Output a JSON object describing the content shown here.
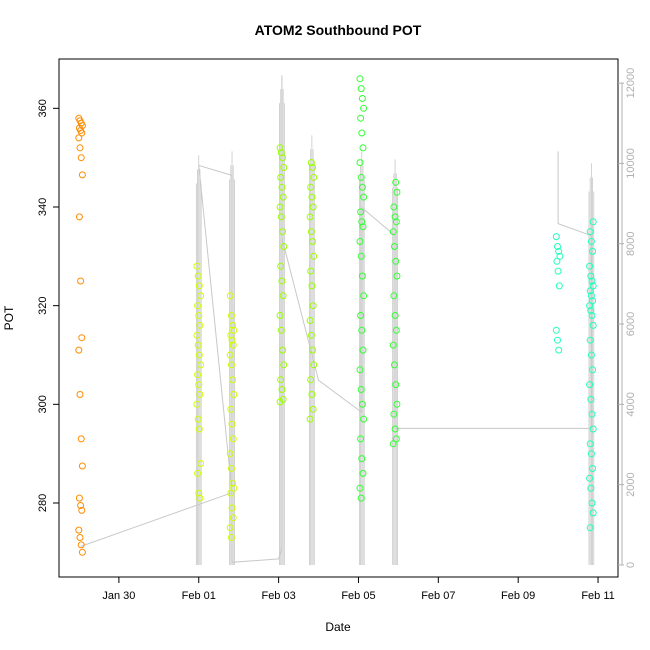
{
  "chart_data": {
    "type": "scatter",
    "title": "ATOM2 Southbound POT",
    "xlabel": "Date",
    "ylabel": "POT",
    "xlim": [
      "2014-01-28T12:00",
      "2014-02-11T12:00"
    ],
    "ylim": [
      265,
      370
    ],
    "y2lim": [
      -300,
      12600
    ],
    "x_ticks": [
      {
        "value": "2014-01-30",
        "label": "Jan 30"
      },
      {
        "value": "2014-02-01",
        "label": "Feb 01"
      },
      {
        "value": "2014-02-03",
        "label": "Feb 03"
      },
      {
        "value": "2014-02-05",
        "label": "Feb 05"
      },
      {
        "value": "2014-02-07",
        "label": "Feb 07"
      },
      {
        "value": "2014-02-09",
        "label": "Feb 09"
      },
      {
        "value": "2014-02-11",
        "label": "Feb 11"
      }
    ],
    "y_ticks": [
      280,
      300,
      320,
      340,
      360
    ],
    "y2_ticks": [
      0,
      2000,
      4000,
      6000,
      8000,
      10000,
      12000
    ],
    "grid": false,
    "legend": "none",
    "colors": {
      "frame": "#000000",
      "secondary_line": "#c8c8c8",
      "secondary_axis": "#b0b0b0"
    },
    "series": [
      {
        "axis": "left",
        "color": "#ff8c00",
        "points": [
          [
            "2014-01-29T01:00",
            358
          ],
          [
            "2014-01-29T01:00",
            357.5
          ],
          [
            "2014-01-29T01:00",
            357
          ],
          [
            "2014-01-29T01:00",
            356.5
          ],
          [
            "2014-01-29T01:00",
            356
          ],
          [
            "2014-01-29T01:00",
            355.5
          ],
          [
            "2014-01-29T01:00",
            355
          ],
          [
            "2014-01-29T01:00",
            354
          ],
          [
            "2014-01-29T01:00",
            352
          ],
          [
            "2014-01-29T01:00",
            350
          ],
          [
            "2014-01-29T01:00",
            346.5
          ],
          [
            "2014-01-29T01:00",
            338
          ],
          [
            "2014-01-29T01:00",
            325
          ],
          [
            "2014-01-29T01:00",
            313.5
          ],
          [
            "2014-01-29T01:00",
            311
          ],
          [
            "2014-01-29T01:00",
            302
          ],
          [
            "2014-01-29T01:00",
            293
          ],
          [
            "2014-01-29T01:00",
            287.5
          ],
          [
            "2014-01-29T01:00",
            281
          ],
          [
            "2014-01-29T01:00",
            279.5
          ],
          [
            "2014-01-29T01:00",
            278.5
          ],
          [
            "2014-01-29T01:00",
            274.5
          ],
          [
            "2014-01-29T01:00",
            273
          ],
          [
            "2014-01-29T01:00",
            271.5
          ],
          [
            "2014-01-29T01:00",
            270
          ]
        ]
      },
      {
        "axis": "left",
        "color": "#ccff00",
        "points": [
          [
            "2014-02-01T00:00",
            328
          ],
          [
            "2014-02-01T00:00",
            326
          ],
          [
            "2014-02-01T00:00",
            324
          ],
          [
            "2014-02-01T00:00",
            322
          ],
          [
            "2014-02-01T00:00",
            320
          ],
          [
            "2014-02-01T00:00",
            318
          ],
          [
            "2014-02-01T00:00",
            316
          ],
          [
            "2014-02-01T00:00",
            314
          ],
          [
            "2014-02-01T00:00",
            312
          ],
          [
            "2014-02-01T00:00",
            310
          ],
          [
            "2014-02-01T00:00",
            308
          ],
          [
            "2014-02-01T00:00",
            306
          ],
          [
            "2014-02-01T00:00",
            304
          ],
          [
            "2014-02-01T00:00",
            302
          ],
          [
            "2014-02-01T00:00",
            300
          ],
          [
            "2014-02-01T00:00",
            297
          ],
          [
            "2014-02-01T00:00",
            295
          ],
          [
            "2014-02-01T00:00",
            288
          ],
          [
            "2014-02-01T00:00",
            286
          ],
          [
            "2014-02-01T00:00",
            282
          ],
          [
            "2014-02-01T00:00",
            281
          ],
          [
            "2014-02-01T20:00",
            322
          ],
          [
            "2014-02-01T20:00",
            318
          ],
          [
            "2014-02-01T20:00",
            316
          ],
          [
            "2014-02-01T20:00",
            315
          ],
          [
            "2014-02-01T20:00",
            314
          ],
          [
            "2014-02-01T20:00",
            313
          ],
          [
            "2014-02-01T20:00",
            312
          ],
          [
            "2014-02-01T20:00",
            310
          ],
          [
            "2014-02-01T20:00",
            308
          ],
          [
            "2014-02-01T20:00",
            305
          ],
          [
            "2014-02-01T20:00",
            302
          ],
          [
            "2014-02-01T20:00",
            299
          ],
          [
            "2014-02-01T20:00",
            296
          ],
          [
            "2014-02-01T20:00",
            293
          ],
          [
            "2014-02-01T20:00",
            290
          ],
          [
            "2014-02-01T20:00",
            287
          ],
          [
            "2014-02-01T20:00",
            284
          ],
          [
            "2014-02-01T20:00",
            283
          ],
          [
            "2014-02-01T20:00",
            282
          ],
          [
            "2014-02-01T20:00",
            279
          ],
          [
            "2014-02-01T20:00",
            277
          ],
          [
            "2014-02-01T20:00",
            275
          ],
          [
            "2014-02-01T20:00",
            273
          ]
        ]
      },
      {
        "axis": "left",
        "color": "#99ff00",
        "points": [
          [
            "2014-02-03T02:00",
            352
          ],
          [
            "2014-02-03T02:00",
            351
          ],
          [
            "2014-02-03T02:00",
            350
          ],
          [
            "2014-02-03T02:00",
            348
          ],
          [
            "2014-02-03T02:00",
            346
          ],
          [
            "2014-02-03T02:00",
            344
          ],
          [
            "2014-02-03T02:00",
            342
          ],
          [
            "2014-02-03T02:00",
            340
          ],
          [
            "2014-02-03T02:00",
            338
          ],
          [
            "2014-02-03T02:00",
            335
          ],
          [
            "2014-02-03T02:00",
            332
          ],
          [
            "2014-02-03T02:00",
            328
          ],
          [
            "2014-02-03T02:00",
            325
          ],
          [
            "2014-02-03T02:00",
            322
          ],
          [
            "2014-02-03T02:00",
            318
          ],
          [
            "2014-02-03T02:00",
            315
          ],
          [
            "2014-02-03T02:00",
            311
          ],
          [
            "2014-02-03T02:00",
            308
          ],
          [
            "2014-02-03T02:00",
            305
          ],
          [
            "2014-02-03T02:00",
            303
          ],
          [
            "2014-02-03T02:00",
            301
          ],
          [
            "2014-02-03T02:00",
            300.5
          ],
          [
            "2014-02-03T20:00",
            349
          ],
          [
            "2014-02-03T20:00",
            348
          ],
          [
            "2014-02-03T20:00",
            346
          ],
          [
            "2014-02-03T20:00",
            344
          ],
          [
            "2014-02-03T20:00",
            342
          ],
          [
            "2014-02-03T20:00",
            340
          ],
          [
            "2014-02-03T20:00",
            338
          ],
          [
            "2014-02-03T20:00",
            335
          ],
          [
            "2014-02-03T20:00",
            333
          ],
          [
            "2014-02-03T20:00",
            330
          ],
          [
            "2014-02-03T20:00",
            327
          ],
          [
            "2014-02-03T20:00",
            324
          ],
          [
            "2014-02-03T20:00",
            320
          ],
          [
            "2014-02-03T20:00",
            317
          ],
          [
            "2014-02-03T20:00",
            314
          ],
          [
            "2014-02-03T20:00",
            311
          ],
          [
            "2014-02-03T20:00",
            308
          ],
          [
            "2014-02-03T20:00",
            305
          ],
          [
            "2014-02-03T20:00",
            302
          ],
          [
            "2014-02-03T20:00",
            299
          ],
          [
            "2014-02-03T20:00",
            297
          ]
        ]
      },
      {
        "axis": "left",
        "color": "#33ff33",
        "points": [
          [
            "2014-02-05T02:00",
            366
          ],
          [
            "2014-02-05T02:00",
            364
          ],
          [
            "2014-02-05T02:00",
            362
          ],
          [
            "2014-02-05T02:00",
            360
          ],
          [
            "2014-02-05T02:00",
            358
          ],
          [
            "2014-02-05T02:00",
            355
          ],
          [
            "2014-02-05T02:00",
            352
          ],
          [
            "2014-02-05T02:00",
            349
          ],
          [
            "2014-02-05T02:00",
            346
          ],
          [
            "2014-02-05T02:00",
            344
          ],
          [
            "2014-02-05T02:00",
            342
          ],
          [
            "2014-02-05T02:00",
            339
          ],
          [
            "2014-02-05T02:00",
            337
          ],
          [
            "2014-02-05T02:00",
            336
          ],
          [
            "2014-02-05T02:00",
            333
          ],
          [
            "2014-02-05T02:00",
            330
          ],
          [
            "2014-02-05T02:00",
            326
          ],
          [
            "2014-02-05T02:00",
            322
          ],
          [
            "2014-02-05T02:00",
            318
          ],
          [
            "2014-02-05T02:00",
            315
          ],
          [
            "2014-02-05T02:00",
            311
          ],
          [
            "2014-02-05T02:00",
            307
          ],
          [
            "2014-02-05T02:00",
            303
          ],
          [
            "2014-02-05T02:00",
            300
          ],
          [
            "2014-02-05T02:00",
            297
          ],
          [
            "2014-02-05T02:00",
            293
          ],
          [
            "2014-02-05T02:00",
            289
          ],
          [
            "2014-02-05T02:00",
            286
          ],
          [
            "2014-02-05T02:00",
            283
          ],
          [
            "2014-02-05T02:00",
            281
          ],
          [
            "2014-02-05T22:00",
            345
          ],
          [
            "2014-02-05T22:00",
            343
          ],
          [
            "2014-02-05T22:00",
            340
          ],
          [
            "2014-02-05T22:00",
            338
          ],
          [
            "2014-02-05T22:00",
            337
          ],
          [
            "2014-02-05T22:00",
            335
          ],
          [
            "2014-02-05T22:00",
            332
          ],
          [
            "2014-02-05T22:00",
            329
          ],
          [
            "2014-02-05T22:00",
            326
          ],
          [
            "2014-02-05T22:00",
            322
          ],
          [
            "2014-02-05T22:00",
            318
          ],
          [
            "2014-02-05T22:00",
            315
          ],
          [
            "2014-02-05T22:00",
            312
          ],
          [
            "2014-02-05T22:00",
            308
          ],
          [
            "2014-02-05T22:00",
            304
          ],
          [
            "2014-02-05T22:00",
            300
          ],
          [
            "2014-02-05T22:00",
            298
          ],
          [
            "2014-02-05T22:00",
            295
          ],
          [
            "2014-02-05T22:00",
            293
          ],
          [
            "2014-02-05T22:00",
            292
          ]
        ]
      },
      {
        "axis": "left",
        "color": "#22ffbb",
        "points": [
          [
            "2014-02-10T00:00",
            334
          ],
          [
            "2014-02-10T00:00",
            332
          ],
          [
            "2014-02-10T00:00",
            331
          ],
          [
            "2014-02-10T00:00",
            330
          ],
          [
            "2014-02-10T00:00",
            329
          ],
          [
            "2014-02-10T00:00",
            327
          ],
          [
            "2014-02-10T00:00",
            324
          ],
          [
            "2014-02-10T00:00",
            315
          ],
          [
            "2014-02-10T00:00",
            313
          ],
          [
            "2014-02-10T00:00",
            311
          ],
          [
            "2014-02-10T20:00",
            337
          ],
          [
            "2014-02-10T20:00",
            335
          ],
          [
            "2014-02-10T20:00",
            333
          ],
          [
            "2014-02-10T20:00",
            331
          ],
          [
            "2014-02-10T20:00",
            328
          ],
          [
            "2014-02-10T20:00",
            326
          ],
          [
            "2014-02-10T20:00",
            325
          ],
          [
            "2014-02-10T20:00",
            324
          ],
          [
            "2014-02-10T20:00",
            323
          ],
          [
            "2014-02-10T20:00",
            322
          ],
          [
            "2014-02-10T20:00",
            321
          ],
          [
            "2014-02-10T20:00",
            320
          ],
          [
            "2014-02-10T20:00",
            319
          ],
          [
            "2014-02-10T20:00",
            318
          ],
          [
            "2014-02-10T20:00",
            316
          ],
          [
            "2014-02-10T20:00",
            313
          ],
          [
            "2014-02-10T20:00",
            310
          ],
          [
            "2014-02-10T20:00",
            307
          ],
          [
            "2014-02-10T20:00",
            304
          ],
          [
            "2014-02-10T20:00",
            301
          ],
          [
            "2014-02-10T20:00",
            298
          ],
          [
            "2014-02-10T20:00",
            295
          ],
          [
            "2014-02-10T20:00",
            292
          ],
          [
            "2014-02-10T20:00",
            290
          ],
          [
            "2014-02-10T20:00",
            287
          ],
          [
            "2014-02-10T20:00",
            285
          ],
          [
            "2014-02-10T20:00",
            283
          ],
          [
            "2014-02-10T20:00",
            280
          ],
          [
            "2014-02-10T20:00",
            278
          ],
          [
            "2014-02-10T20:00",
            275
          ]
        ]
      },
      {
        "axis": "right",
        "type": "line",
        "color": "#c8c8c8",
        "points": [
          [
            "2014-01-29T01:00",
            460
          ],
          [
            "2014-02-01T20:00",
            1800
          ],
          [
            "2014-02-01T00:00",
            9950
          ],
          [
            "2014-02-01T20:00",
            9700
          ],
          [
            "2014-02-01T20:00",
            65
          ],
          [
            "2014-02-03T00:00",
            150
          ],
          [
            "2014-02-03T02:00",
            440
          ],
          [
            "2014-02-03T02:00",
            12150
          ],
          [
            "2014-02-03T02:00",
            8150
          ],
          [
            "2014-02-04T00:00",
            4600
          ],
          [
            "2014-02-05T02:00",
            3800
          ],
          [
            "2014-02-05T02:00",
            8900
          ],
          [
            "2014-02-05T22:00",
            8200
          ],
          [
            "2014-02-05T22:00",
            3400
          ],
          [
            "2014-02-10T20:00",
            3400
          ],
          [
            "2014-02-10T20:00",
            8200
          ],
          [
            "2014-02-10T00:00",
            8500
          ],
          [
            "2014-02-10T00:00",
            10300
          ]
        ]
      }
    ],
    "secondary_spikes": [
      {
        "x": "2014-02-01T00:00",
        "top": 10200
      },
      {
        "x": "2014-02-01T20:00",
        "top": 10300
      },
      {
        "x": "2014-02-03T02:00",
        "top": 12200
      },
      {
        "x": "2014-02-03T20:00",
        "top": 10700
      },
      {
        "x": "2014-02-05T02:00",
        "top": 10300
      },
      {
        "x": "2014-02-05T22:00",
        "top": 10100
      },
      {
        "x": "2014-02-10T20:00",
        "top": 10000
      }
    ]
  }
}
